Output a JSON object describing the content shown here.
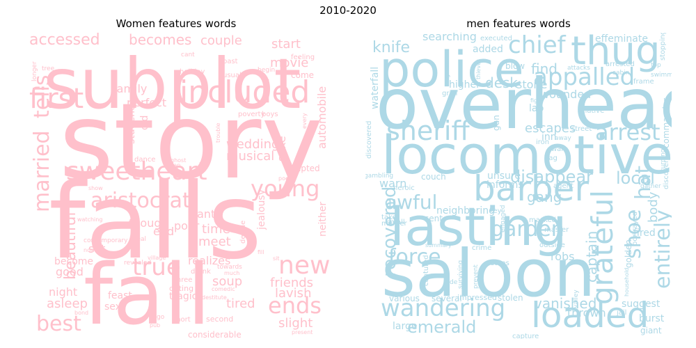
{
  "figure": {
    "title": "2010-2020"
  },
  "colors": {
    "women": "#ffc0cb",
    "men": "#add8e6",
    "background": "#ffffff"
  },
  "chart_data": [
    {
      "type": "wordcloud",
      "title": "Women features words",
      "words": [
        "story",
        "falls",
        "fall",
        "subplot",
        "included",
        "sweetheart",
        "first",
        "married",
        "tells",
        "young",
        "new",
        "true",
        "aristocrat",
        "best",
        "ends",
        "beautiful",
        "accessed",
        "becomes",
        "couple",
        "start",
        "movie",
        "family",
        "perfect",
        "wedding",
        "musical",
        "soup",
        "tired",
        "friends",
        "lavish",
        "slight",
        "asleep",
        "night",
        "good",
        "become",
        "time",
        "meet",
        "poor",
        "want",
        "though",
        "end",
        "set",
        "realizes",
        "jealousy",
        "neither",
        "automobile",
        "adapted",
        "sake",
        "feast",
        "sex",
        "tragic",
        "student",
        "old",
        "dance",
        "dating",
        "three",
        "considerable",
        "second",
        "short",
        "boys",
        "poverty",
        "contemporary",
        "normal",
        "village",
        "revealed",
        "real",
        "drunk",
        "decide",
        "holiday",
        "usual",
        "past",
        "cant",
        "feeling",
        "come",
        "begin",
        "tree",
        "longer",
        "towards",
        "poem",
        "much",
        "present",
        "destitute",
        "comedic",
        "ghost",
        "pub",
        "go",
        "bond",
        "watching",
        "show",
        "cheap",
        "trouble",
        "every",
        "fill",
        "sit"
      ]
    },
    {
      "type": "wordcloud",
      "title": "men features words",
      "words": [
        "overhead",
        "locomotive",
        "police",
        "saloon",
        "lasting",
        "thug",
        "barber",
        "loaded",
        "wandering",
        "grateful",
        "sheriff",
        "chief",
        "appalled",
        "arrest",
        "entirely",
        "shoe",
        "garden",
        "force",
        "recovered",
        "awful",
        "emerald",
        "captain",
        "vanished",
        "knife",
        "disappear",
        "gang",
        "local",
        "hat",
        "body",
        "escapes",
        "find",
        "desk",
        "stone",
        "wounded",
        "added",
        "searching",
        "effeminate",
        "commander",
        "executed",
        "thrown",
        "burst",
        "giant",
        "suggest",
        "fired",
        "golden",
        "robs",
        "informs",
        "unsure",
        "neighboring",
        "couch",
        "warn",
        "lab",
        "inn",
        "gun",
        "higher",
        "blow",
        "sent",
        "discovered",
        "waterfall",
        "large",
        "various",
        "several",
        "captured",
        "impressed",
        "stolen",
        "capture",
        "crime",
        "stops",
        "master",
        "agent",
        "bag",
        "wall",
        "street",
        "native",
        "fight",
        "grief",
        "attacks",
        "arrested",
        "cabin",
        "frame",
        "top",
        "swimming",
        "stopping",
        "discover",
        "gather",
        "turning",
        "portrayed",
        "household",
        "jail",
        "valley",
        "outside",
        "army",
        "masked",
        "key",
        "engaged",
        "take",
        "small",
        "murder",
        "heroic",
        "gambling",
        "summary",
        "surviving",
        "prevent",
        "de",
        "iron",
        "away",
        "general",
        "thieves"
      ]
    }
  ]
}
